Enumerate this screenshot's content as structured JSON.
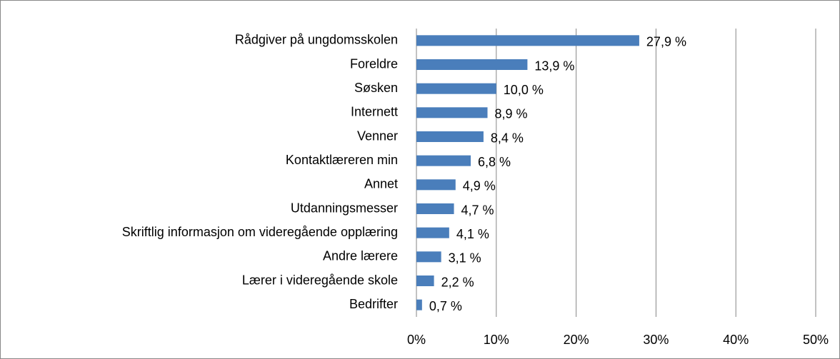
{
  "chart_data": {
    "type": "bar",
    "orientation": "horizontal",
    "categories": [
      "Rådgiver på ungdomsskolen",
      "Foreldre",
      "Søsken",
      "Internett",
      "Venner",
      "Kontaktlæreren min",
      "Annet",
      "Utdanningsmesser",
      "Skriftlig informasjon om videregående opplæring",
      "Andre lærere",
      "Lærer i videregående skole",
      "Bedrifter"
    ],
    "values": [
      27.9,
      13.9,
      10.0,
      8.9,
      8.4,
      6.8,
      4.9,
      4.7,
      4.1,
      3.1,
      2.2,
      0.7
    ],
    "value_labels": [
      "27,9 %",
      "13,9 %",
      "10,0 %",
      "8,9 %",
      "8,4 %",
      "6,8 %",
      "4,9 %",
      "4,7 %",
      "4,1 %",
      "3,1 %",
      "2,2 %",
      "0,7 %"
    ],
    "color": "#4a7ebb",
    "xlim": [
      0,
      50
    ],
    "xticks": [
      {
        "value": 0,
        "label": "0%"
      },
      {
        "value": 10,
        "label": "10%"
      },
      {
        "value": 20,
        "label": "20%"
      },
      {
        "value": 30,
        "label": "30%"
      },
      {
        "value": 40,
        "label": "40%"
      },
      {
        "value": 50,
        "label": "50%"
      }
    ],
    "grid": true
  }
}
